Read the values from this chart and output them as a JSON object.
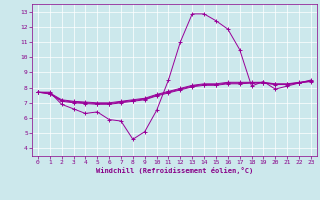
{
  "title": "",
  "xlabel": "Windchill (Refroidissement éolien,°C)",
  "bg_color": "#cce8ec",
  "line_color": "#990099",
  "grid_color": "#ffffff",
  "xlim": [
    -0.5,
    23.5
  ],
  "ylim": [
    3.5,
    13.5
  ],
  "xticks": [
    0,
    1,
    2,
    3,
    4,
    5,
    6,
    7,
    8,
    9,
    10,
    11,
    12,
    13,
    14,
    15,
    16,
    17,
    18,
    19,
    20,
    21,
    22,
    23
  ],
  "yticks": [
    4,
    5,
    6,
    7,
    8,
    9,
    10,
    11,
    12,
    13
  ],
  "series": [
    [
      7.7,
      7.7,
      6.9,
      6.6,
      6.3,
      6.4,
      5.9,
      5.8,
      4.6,
      5.1,
      6.5,
      8.5,
      11.0,
      12.85,
      12.85,
      12.4,
      11.85,
      10.5,
      8.1,
      8.4,
      7.9,
      8.1,
      8.3,
      8.5
    ],
    [
      7.7,
      7.65,
      7.2,
      7.1,
      7.05,
      7.0,
      7.0,
      7.1,
      7.2,
      7.3,
      7.55,
      7.75,
      7.95,
      8.15,
      8.25,
      8.25,
      8.35,
      8.35,
      8.35,
      8.35,
      8.25,
      8.25,
      8.35,
      8.45
    ],
    [
      7.7,
      7.6,
      7.1,
      7.0,
      6.95,
      6.9,
      6.9,
      7.0,
      7.1,
      7.2,
      7.45,
      7.65,
      7.85,
      8.05,
      8.15,
      8.15,
      8.25,
      8.25,
      8.3,
      8.3,
      8.2,
      8.2,
      8.3,
      8.4
    ],
    [
      7.7,
      7.58,
      7.15,
      7.05,
      7.0,
      6.95,
      6.95,
      7.05,
      7.15,
      7.25,
      7.5,
      7.7,
      7.9,
      8.1,
      8.2,
      8.2,
      8.3,
      8.3,
      8.32,
      8.32,
      8.22,
      8.22,
      8.32,
      8.43
    ]
  ]
}
